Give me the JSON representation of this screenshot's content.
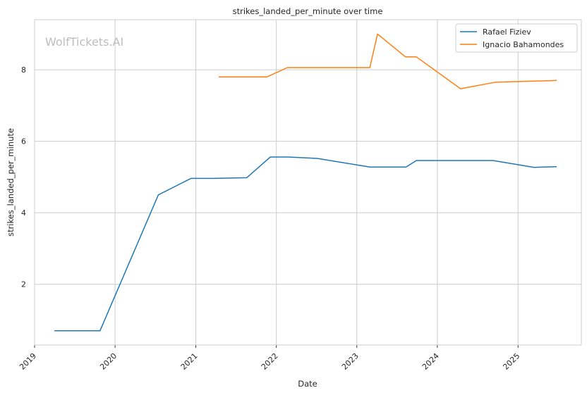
{
  "chart_data": {
    "type": "line",
    "title": "strikes_landed_per_minute over time",
    "xlabel": "Date",
    "ylabel": "strikes_landed_per_minute",
    "watermark": "WolfTickets.AI",
    "x_ticks": [
      "2019",
      "2020",
      "2021",
      "2022",
      "2023",
      "2024",
      "2025"
    ],
    "y_ticks": [
      2,
      4,
      6,
      8
    ],
    "xlim": [
      "2019-01-01",
      "2025-10-15"
    ],
    "ylim": [
      0.3,
      9.4
    ],
    "grid": true,
    "legend_position": "top-right",
    "series": [
      {
        "name": "Rafael Fiziev",
        "color": "#1f77b4",
        "points": [
          [
            "2019-04-01",
            0.7
          ],
          [
            "2019-10-25",
            0.7
          ],
          [
            "2020-07-15",
            4.5
          ],
          [
            "2020-12-10",
            4.96
          ],
          [
            "2021-03-25",
            4.96
          ],
          [
            "2021-08-20",
            4.98
          ],
          [
            "2021-12-05",
            5.56
          ],
          [
            "2022-02-25",
            5.56
          ],
          [
            "2022-07-05",
            5.52
          ],
          [
            "2023-03-01",
            5.28
          ],
          [
            "2023-08-12",
            5.28
          ],
          [
            "2023-09-28",
            5.46
          ],
          [
            "2024-09-10",
            5.46
          ],
          [
            "2025-03-15",
            5.27
          ],
          [
            "2025-06-25",
            5.29
          ]
        ]
      },
      {
        "name": "Ignacio Bahamondes",
        "color": "#ff7f0e",
        "points": [
          [
            "2021-04-15",
            7.8
          ],
          [
            "2021-11-20",
            7.8
          ],
          [
            "2022-02-20",
            8.06
          ],
          [
            "2023-03-01",
            8.06
          ],
          [
            "2023-04-05",
            9.0
          ],
          [
            "2023-08-10",
            8.36
          ],
          [
            "2023-09-28",
            8.36
          ],
          [
            "2024-04-15",
            7.47
          ],
          [
            "2024-09-20",
            7.65
          ],
          [
            "2025-06-25",
            7.7
          ]
        ]
      }
    ]
  }
}
